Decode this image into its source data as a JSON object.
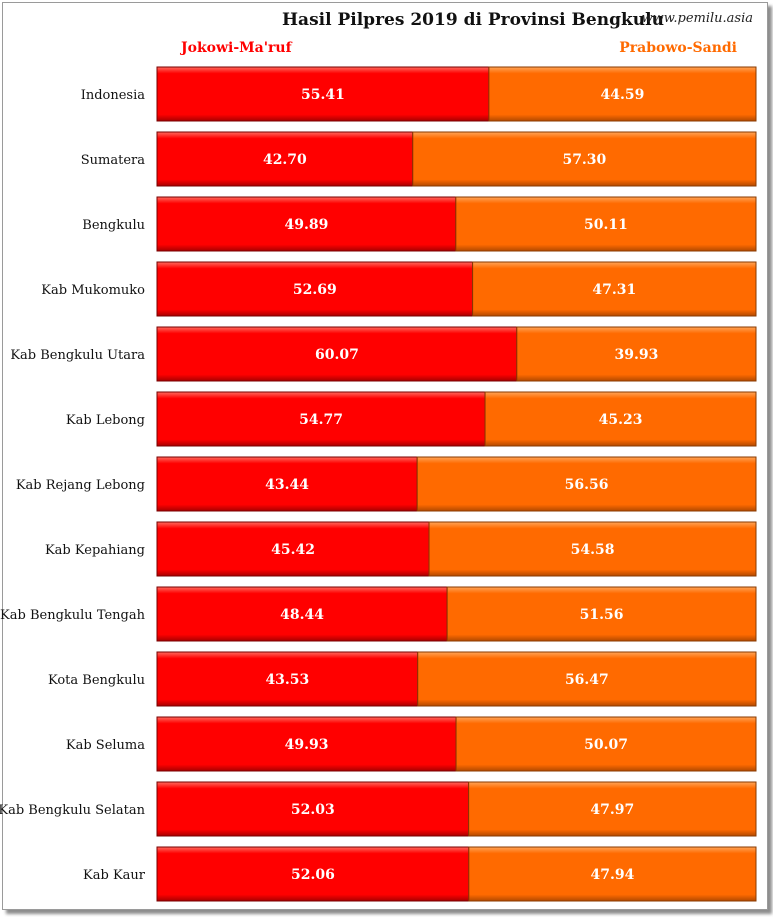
{
  "title": "Hasil Pilpres 2019 di Provinsi Bengkulu",
  "site": "www.pemilu.asia",
  "chart_data": {
    "type": "bar",
    "stacked": true,
    "orientation": "horizontal",
    "categories": [
      "Indonesia",
      "Sumatera",
      "Bengkulu",
      "Kab Mukomuko",
      "Kab Bengkulu Utara",
      "Kab Lebong",
      "Kab Rejang Lebong",
      "Kab Kepahiang",
      "Kab Bengkulu Tengah",
      "Kota Bengkulu",
      "Kab Seluma",
      "Kab Bengkulu Selatan",
      "Kab Kaur"
    ],
    "series": [
      {
        "name": "Jokowi-Ma'ruf",
        "color": "#ff0000",
        "values": [
          55.41,
          42.7,
          49.89,
          52.69,
          60.07,
          54.77,
          43.44,
          45.42,
          48.44,
          43.53,
          49.93,
          52.03,
          52.06
        ],
        "labels": [
          "55.41",
          "42.70",
          "49.89",
          "52.69",
          "60.07",
          "54.77",
          "43.44",
          "45.42",
          "48.44",
          "43.53",
          "49.93",
          "52.03",
          "52.06"
        ]
      },
      {
        "name": "Prabowo-Sandi",
        "color": "#ff6a00",
        "values": [
          44.59,
          57.3,
          50.11,
          47.31,
          39.93,
          45.23,
          56.56,
          54.58,
          51.56,
          56.47,
          50.07,
          47.97,
          47.94
        ],
        "labels": [
          "44.59",
          "57.30",
          "50.11",
          "47.31",
          "39.93",
          "45.23",
          "56.56",
          "54.58",
          "51.56",
          "56.47",
          "50.07",
          "47.97",
          "47.94"
        ]
      }
    ],
    "xlim": [
      0,
      100
    ],
    "grid": false,
    "legend": "top"
  }
}
